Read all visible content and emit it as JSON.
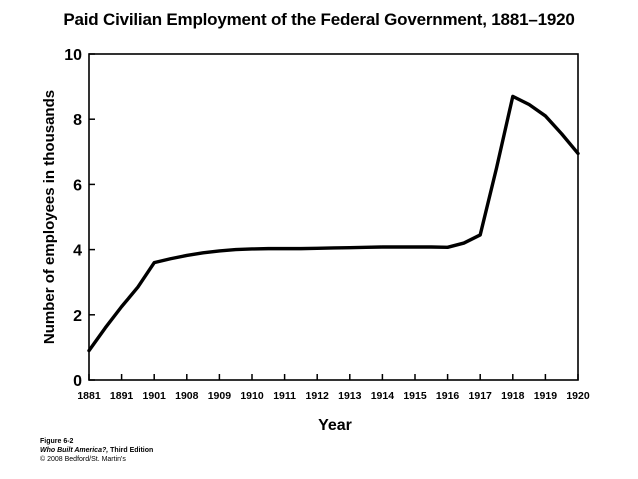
{
  "chart_data": {
    "type": "line",
    "title": "Paid Civilian Employment of the Federal Government, 1881–1920",
    "xlabel": "Year",
    "ylabel": "Number of employees in thousands",
    "categories": [
      "1881",
      "1891",
      "1901",
      "1908",
      "1909",
      "1910",
      "1911",
      "1912",
      "1913",
      "1914",
      "1915",
      "1916",
      "1917",
      "1918",
      "1919",
      "1920"
    ],
    "yticks": [
      0,
      2,
      4,
      6,
      8,
      10
    ],
    "ylim": [
      0,
      10
    ],
    "grid": false,
    "legend": "none",
    "line_color": "#000000",
    "x": [
      0,
      0.5,
      1,
      1.5,
      2,
      2.5,
      3,
      3.5,
      4,
      4.5,
      5,
      5.5,
      6,
      6.5,
      7,
      7.5,
      8,
      8.5,
      9,
      9.5,
      10,
      10.5,
      11,
      11.5,
      12,
      12.5,
      13,
      13.5,
      14,
      14.5,
      15
    ],
    "y": [
      0.9,
      1.6,
      2.25,
      2.85,
      3.6,
      3.72,
      3.82,
      3.9,
      3.96,
      4.0,
      4.02,
      4.03,
      4.03,
      4.03,
      4.04,
      4.05,
      4.06,
      4.07,
      4.08,
      4.08,
      4.08,
      4.08,
      4.07,
      4.2,
      4.45,
      6.5,
      8.7,
      8.45,
      8.1,
      7.55,
      6.95
    ]
  },
  "caption": {
    "figure": "Figure 6-2",
    "book_title": "Who Built America?,",
    "edition": " Third Edition",
    "copyright": "© 2008 Bedford/St. Martin's"
  }
}
